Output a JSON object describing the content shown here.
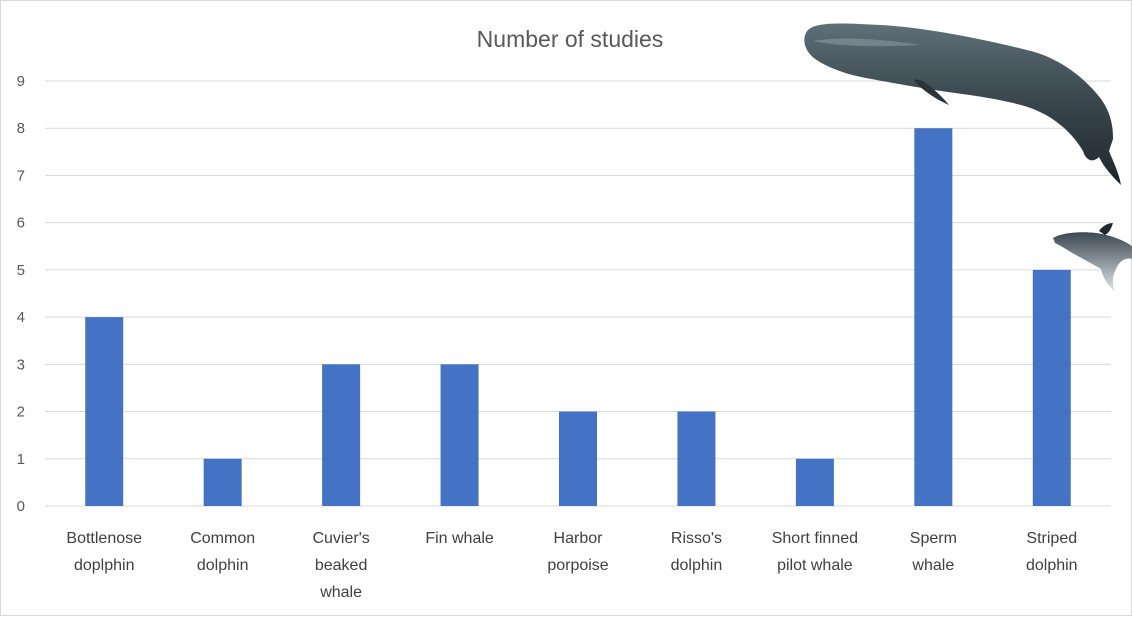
{
  "colors": {
    "bar": "#4472c4",
    "grid": "#d9d9d9",
    "text": "#595959"
  },
  "chart_data": {
    "type": "bar",
    "title": "Number of studies",
    "xlabel": "",
    "ylabel": "",
    "ylim": [
      0,
      9
    ],
    "yticks": [
      0,
      1,
      2,
      3,
      4,
      5,
      6,
      7,
      8,
      9
    ],
    "grid": true,
    "legend": "none",
    "categories": [
      "Bottlenose doplphin",
      "Common dolphin",
      "Cuvier's beaked whale",
      "Fin whale",
      "Harbor porpoise",
      "Risso's dolphin",
      "Short finned pilot whale",
      "Sperm whale",
      "Striped dolphin"
    ],
    "values": [
      4,
      1,
      3,
      3,
      2,
      2,
      1,
      8,
      5
    ]
  },
  "illustrations": [
    "sperm-whale-image",
    "striped-dolphin-image"
  ]
}
